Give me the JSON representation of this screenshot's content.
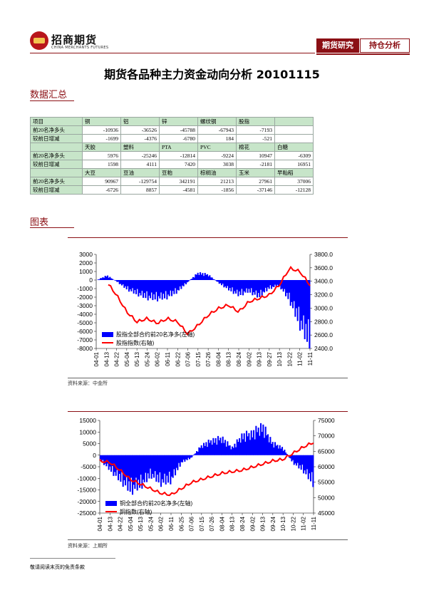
{
  "header": {
    "logo_cn": "招商期货",
    "logo_en": "CHINA MERCHANTS FUTURES",
    "tag1": "期货研究",
    "tag2": "持仓分析"
  },
  "title": "期货各品种主力资金动向分析 20101115",
  "sections": {
    "summary": "数据汇总",
    "charts": "图表"
  },
  "table": {
    "groups": [
      {
        "header_label": "项目",
        "products": [
          "铜",
          "铝",
          "锌",
          "螺纹钢",
          "股指",
          ""
        ],
        "rows": [
          {
            "label": "前20名净多头",
            "values": [
              "-10936",
              "-36526",
              "-45788",
              "-67943",
              "-7193",
              ""
            ]
          },
          {
            "label": "较前日增减",
            "values": [
              "-1699",
              "-4376",
              "-6780",
              "184",
              "-521",
              ""
            ]
          }
        ]
      },
      {
        "header_label": "",
        "products": [
          "天胶",
          "塑料",
          "PTA",
          "PVC",
          "棉花",
          "白糖"
        ],
        "rows": [
          {
            "label": "前20名净多头",
            "values": [
              "5976",
              "-25246",
              "-12814",
              "-9224",
              "10947",
              "-6309"
            ]
          },
          {
            "label": "较前日增减",
            "values": [
              "1598",
              "4111",
              "7420",
              "3038",
              "-2181",
              "16951"
            ]
          }
        ]
      },
      {
        "header_label": "",
        "products": [
          "大豆",
          "豆油",
          "豆粕",
          "棕榈油",
          "玉米",
          "早籼稻"
        ],
        "rows": [
          {
            "label": "前20名净多头",
            "values": [
              "90967",
              "-129754",
              "342191",
              "21213",
              "27961",
              "37006"
            ]
          },
          {
            "label": "较前日增减",
            "values": [
              "-6726",
              "8857",
              "-4581",
              "-1856",
              "-37146",
              "-12128"
            ]
          }
        ]
      }
    ]
  },
  "chart_data": [
    {
      "type": "area",
      "x": [
        "04-01",
        "04-13",
        "04-22",
        "05-04",
        "05-13",
        "05-24",
        "06-02",
        "06-11",
        "06-22",
        "07-06",
        "07-15",
        "07-26",
        "08-04",
        "08-13",
        "08-24",
        "09-02",
        "09-13",
        "09-27",
        "10-13",
        "10-22",
        "11-02",
        "11-11"
      ],
      "left_axis": {
        "ylim": [
          -8000,
          3000
        ],
        "ticks": [
          "3000",
          "2000",
          "1000",
          "0",
          "-1000",
          "-2000",
          "-3000",
          "-4000",
          "-5000",
          "-6000",
          "-7000",
          "-8000"
        ]
      },
      "right_axis": {
        "ylim": [
          2400,
          3800
        ],
        "ticks": [
          "3800.0",
          "3600.0",
          "3400.0",
          "3200.0",
          "3000.0",
          "2800.0",
          "2600.0",
          "2400.0"
        ]
      },
      "series": [
        {
          "name": "股指全部合约前20名净多(左轴)",
          "axis": "left",
          "color": "#0000ff",
          "values": [
            0,
            500,
            -200,
            -1000,
            -1500,
            -1900,
            -2000,
            -1800,
            -1200,
            -200,
            800,
            600,
            -300,
            -1000,
            -1600,
            -1200,
            -1800,
            -900,
            -600,
            -2100,
            -4600,
            -6800
          ]
        },
        {
          "name": "股指指数(右轴)",
          "axis": "right",
          "color": "#ff0000",
          "values": [
            null,
            3400,
            3200,
            2950,
            2800,
            2850,
            2780,
            2850,
            2800,
            2620,
            2750,
            2900,
            3000,
            3050,
            2950,
            3100,
            3150,
            3200,
            3350,
            3600,
            3550,
            3350
          ]
        }
      ],
      "legend": "lower-left"
    },
    {
      "type": "area",
      "x": [
        "04-01",
        "04-13",
        "04-22",
        "05-04",
        "05-13",
        "05-24",
        "06-02",
        "06-11",
        "06-25",
        "07-06",
        "07-15",
        "07-26",
        "08-04",
        "08-13",
        "08-24",
        "09-02",
        "09-13",
        "09-24",
        "10-13",
        "10-22",
        "11-02",
        "11-11"
      ],
      "left_axis": {
        "ylim": [
          -25000,
          15000
        ],
        "ticks": [
          "15000",
          "10000",
          "5000",
          "0",
          "-5000",
          "-10000",
          "-15000",
          "-20000",
          "-25000"
        ]
      },
      "right_axis": {
        "ylim": [
          45000,
          75000
        ],
        "ticks": [
          "75000",
          "70000",
          "65000",
          "60000",
          "55000",
          "50000",
          "45000"
        ]
      },
      "series": [
        {
          "name": "铜全部合约前20名净多(左轴)",
          "axis": "left",
          "color": "#0000ff",
          "values": [
            -2000,
            -6000,
            -10000,
            -14000,
            -12000,
            -8000,
            -11000,
            -10000,
            -3000,
            -1000,
            4000,
            6000,
            7000,
            3000,
            8000,
            9000,
            12000,
            5000,
            3000,
            -3000,
            -6000,
            -11000
          ]
        },
        {
          "name": "铜指数(右轴)",
          "axis": "right",
          "color": "#ff0000",
          "values": [
            62000,
            61500,
            59000,
            56000,
            54500,
            53000,
            51500,
            51000,
            53000,
            55000,
            56000,
            57000,
            58000,
            58500,
            59000,
            60000,
            61000,
            62000,
            62500,
            64500,
            66500,
            68000
          ]
        }
      ],
      "legend": "lower-left"
    }
  ],
  "sources": [
    "资料来源：中金所",
    "资料来源：上期所"
  ],
  "footer": "敬请阅读末页的免责条款"
}
